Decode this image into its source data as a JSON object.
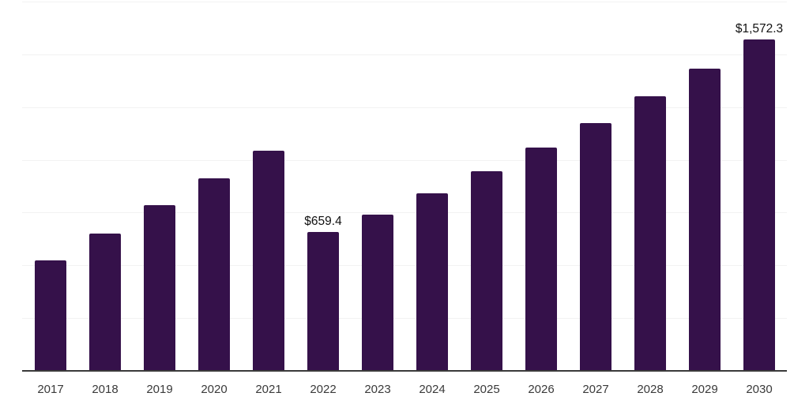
{
  "chart_data": {
    "type": "bar",
    "categories": [
      "2017",
      "2018",
      "2019",
      "2020",
      "2021",
      "2022",
      "2023",
      "2024",
      "2025",
      "2026",
      "2027",
      "2028",
      "2029",
      "2030"
    ],
    "values": [
      525,
      650,
      785,
      912,
      1042,
      659.4,
      742,
      841,
      947,
      1057,
      1175,
      1303,
      1434,
      1572.3
    ],
    "annotations": [
      {
        "category": "2022",
        "text": "$659.4"
      },
      {
        "category": "2030",
        "text": "$1,572.3"
      }
    ],
    "title": "",
    "xlabel": "",
    "ylabel": "",
    "ylim": [
      0,
      1750
    ],
    "gridline_step": 250,
    "grid": true,
    "legend": false,
    "y_axis_labels_visible": false
  },
  "colors": {
    "bar": "#35114a",
    "axis_line": "#3a3a3a",
    "gridline": "#f2f2f2",
    "value_label_text": "#111111",
    "tick_label_text": "#3a3a3a",
    "background": "#ffffff"
  }
}
